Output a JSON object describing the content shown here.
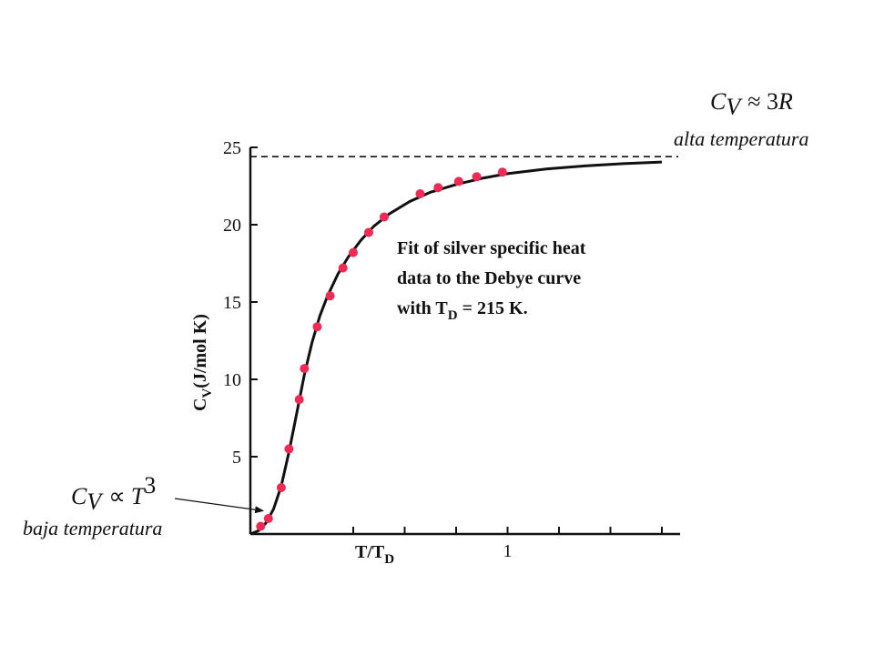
{
  "chart_data": {
    "type": "scatter",
    "title": "",
    "xlabel": "T/T_D",
    "xlabel_main": "T/T",
    "xlabel_sub": "D",
    "ylabel": "C_V(J/mol K)",
    "ylabel_main": "C",
    "ylabel_sub": "V",
    "ylabel_rest": "(J/mol K)",
    "xlim": [
      0,
      1.6
    ],
    "ylim": [
      0,
      25
    ],
    "y_ticks": [
      {
        "value": 5,
        "label": "5"
      },
      {
        "value": 10,
        "label": "10"
      },
      {
        "value": 15,
        "label": "15"
      },
      {
        "value": 20,
        "label": "20"
      },
      {
        "value": 25,
        "label": "25"
      }
    ],
    "x_ticks": [
      {
        "value": 0.4
      },
      {
        "value": 0.6
      },
      {
        "value": 0.8
      },
      {
        "value": 1.0,
        "label": "1"
      },
      {
        "value": 1.2
      },
      {
        "value": 1.4
      },
      {
        "value": 1.6
      }
    ],
    "asymptote": 24.4,
    "marker_color": "#ee2a55",
    "curve_color": "#111111",
    "points": [
      {
        "x": 0.04,
        "y": 0.5
      },
      {
        "x": 0.07,
        "y": 1.0
      },
      {
        "x": 0.12,
        "y": 3.0
      },
      {
        "x": 0.15,
        "y": 5.5
      },
      {
        "x": 0.19,
        "y": 8.7
      },
      {
        "x": 0.21,
        "y": 10.7
      },
      {
        "x": 0.26,
        "y": 13.4
      },
      {
        "x": 0.31,
        "y": 15.4
      },
      {
        "x": 0.36,
        "y": 17.2
      },
      {
        "x": 0.4,
        "y": 18.2
      },
      {
        "x": 0.46,
        "y": 19.5
      },
      {
        "x": 0.52,
        "y": 20.5
      },
      {
        "x": 0.66,
        "y": 22.0
      },
      {
        "x": 0.73,
        "y": 22.4
      },
      {
        "x": 0.81,
        "y": 22.8
      },
      {
        "x": 0.88,
        "y": 23.1
      },
      {
        "x": 0.98,
        "y": 23.4
      }
    ],
    "curve": [
      {
        "x": 0.0,
        "y": 0.0
      },
      {
        "x": 0.03,
        "y": 0.2
      },
      {
        "x": 0.06,
        "y": 0.7
      },
      {
        "x": 0.09,
        "y": 1.6
      },
      {
        "x": 0.12,
        "y": 3.1
      },
      {
        "x": 0.15,
        "y": 5.3
      },
      {
        "x": 0.18,
        "y": 7.8
      },
      {
        "x": 0.21,
        "y": 10.3
      },
      {
        "x": 0.24,
        "y": 12.4
      },
      {
        "x": 0.27,
        "y": 14.1
      },
      {
        "x": 0.3,
        "y": 15.4
      },
      {
        "x": 0.34,
        "y": 16.8
      },
      {
        "x": 0.38,
        "y": 17.9
      },
      {
        "x": 0.43,
        "y": 19.0
      },
      {
        "x": 0.48,
        "y": 19.9
      },
      {
        "x": 0.54,
        "y": 20.7
      },
      {
        "x": 0.62,
        "y": 21.5
      },
      {
        "x": 0.7,
        "y": 22.1
      },
      {
        "x": 0.8,
        "y": 22.6
      },
      {
        "x": 0.9,
        "y": 23.0
      },
      {
        "x": 1.0,
        "y": 23.3
      },
      {
        "x": 1.15,
        "y": 23.6
      },
      {
        "x": 1.3,
        "y": 23.8
      },
      {
        "x": 1.45,
        "y": 23.95
      },
      {
        "x": 1.6,
        "y": 24.05
      }
    ],
    "annotation": {
      "line1": "Fit of silver specific heat",
      "line2": "data to the Debye curve",
      "line3_main": "with T",
      "line3_sub": "D",
      "line3_rest": " = 215 K."
    }
  },
  "high_temp": {
    "c": "C",
    "sub": "V",
    "rel": "≈ 3",
    "r": "R",
    "label": "alta temperatura"
  },
  "low_temp": {
    "c": "C",
    "sub": "V",
    "rel": "∝",
    "t": "T",
    "sup": "3",
    "label": "baja temperatura",
    "arrow_target_y": 1.5
  }
}
